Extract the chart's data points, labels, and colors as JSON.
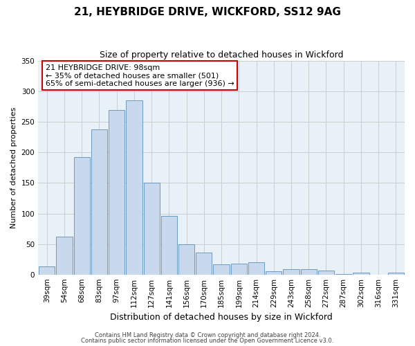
{
  "title": "21, HEYBRIDGE DRIVE, WICKFORD, SS12 9AG",
  "subtitle": "Size of property relative to detached houses in Wickford",
  "xlabel": "Distribution of detached houses by size in Wickford",
  "ylabel": "Number of detached properties",
  "categories": [
    "39sqm",
    "54sqm",
    "68sqm",
    "83sqm",
    "97sqm",
    "112sqm",
    "127sqm",
    "141sqm",
    "156sqm",
    "170sqm",
    "185sqm",
    "199sqm",
    "214sqm",
    "229sqm",
    "243sqm",
    "258sqm",
    "272sqm",
    "287sqm",
    "302sqm",
    "316sqm",
    "331sqm"
  ],
  "values": [
    13,
    62,
    192,
    238,
    270,
    285,
    150,
    96,
    49,
    36,
    17,
    18,
    20,
    5,
    9,
    9,
    6,
    1,
    3,
    0,
    3
  ],
  "bar_color": "#c9d9ed",
  "bar_edge_color": "#5b8db8",
  "background_color": "#ffffff",
  "plot_bg_color": "#e8f0f8",
  "grid_color": "#cccccc",
  "ylim": [
    0,
    350
  ],
  "yticks": [
    0,
    50,
    100,
    150,
    200,
    250,
    300,
    350
  ],
  "property_label": "21 HEYBRIDGE DRIVE: 98sqm",
  "annotation_line1": "← 35% of detached houses are smaller (501)",
  "annotation_line2": "65% of semi-detached houses are larger (936) →",
  "property_bar_index": 4,
  "footnote1": "Contains HM Land Registry data © Crown copyright and database right 2024.",
  "footnote2": "Contains public sector information licensed under the Open Government Licence v3.0.",
  "box_color": "#cc0000",
  "title_fontsize": 11,
  "subtitle_fontsize": 9,
  "ylabel_fontsize": 8,
  "xlabel_fontsize": 9,
  "tick_fontsize": 7.5,
  "annotation_fontsize": 8,
  "footnote_fontsize": 6
}
